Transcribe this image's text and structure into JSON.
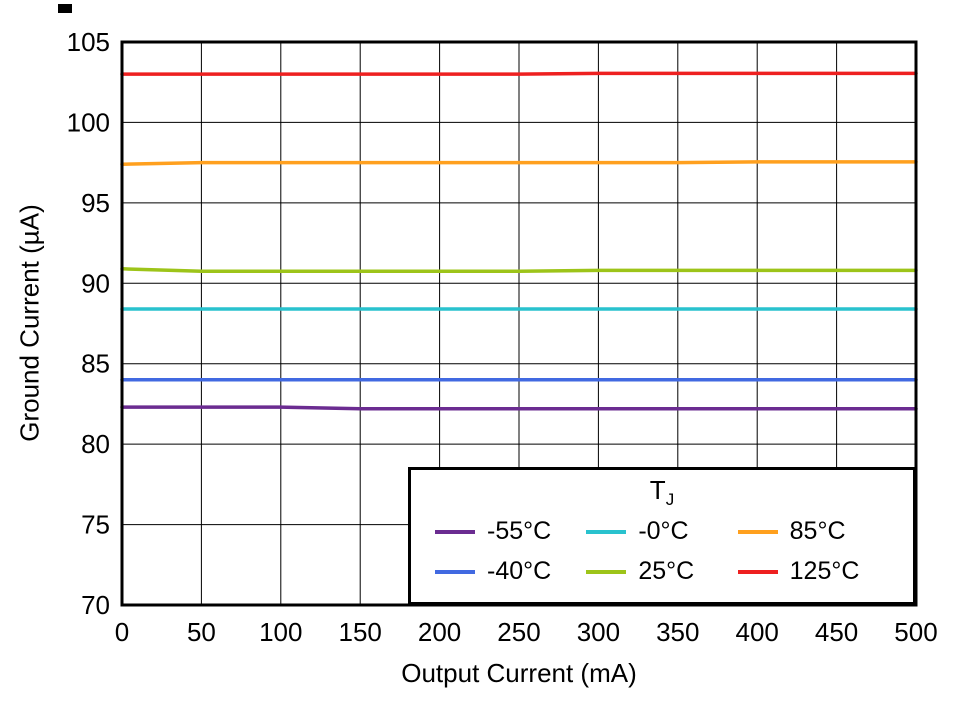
{
  "legend": {
    "title_main": "T",
    "title_sub": "J"
  },
  "chart_data": {
    "type": "line",
    "title": "",
    "xlabel": "Output Current (mA)",
    "ylabel": "Ground Current (µA)",
    "xlim": [
      0,
      500
    ],
    "ylim": [
      70,
      105
    ],
    "xticks": [
      0,
      50,
      100,
      150,
      200,
      250,
      300,
      350,
      400,
      450,
      500
    ],
    "yticks": [
      70,
      75,
      80,
      85,
      90,
      95,
      100,
      105
    ],
    "grid": true,
    "grid_color": "#000000",
    "border_color": "#000000",
    "legend_position": "inside-bottom-right",
    "x": [
      0,
      50,
      100,
      150,
      200,
      250,
      300,
      350,
      400,
      450,
      500
    ],
    "series": [
      {
        "name": "-55°C",
        "color": "#6b2c91",
        "values": [
          82.3,
          82.3,
          82.3,
          82.2,
          82.2,
          82.2,
          82.2,
          82.2,
          82.2,
          82.2,
          82.2
        ]
      },
      {
        "name": "-40°C",
        "color": "#4169e1",
        "values": [
          84.0,
          84.0,
          84.0,
          84.0,
          84.0,
          84.0,
          84.0,
          84.0,
          84.0,
          84.0,
          84.0
        ]
      },
      {
        "name": "-0°C",
        "color": "#29c2ce",
        "values": [
          88.4,
          88.4,
          88.4,
          88.4,
          88.4,
          88.4,
          88.4,
          88.4,
          88.4,
          88.4,
          88.4
        ]
      },
      {
        "name": "25°C",
        "color": "#9dc419",
        "values": [
          90.9,
          90.75,
          90.75,
          90.75,
          90.75,
          90.75,
          90.8,
          90.8,
          90.8,
          90.8,
          90.8
        ]
      },
      {
        "name": "85°C",
        "color": "#ffa01e",
        "values": [
          97.4,
          97.5,
          97.5,
          97.5,
          97.5,
          97.5,
          97.5,
          97.5,
          97.55,
          97.55,
          97.55
        ]
      },
      {
        "name": "125°C",
        "color": "#ee2020",
        "values": [
          103.0,
          103.0,
          103.0,
          103.0,
          103.0,
          103.0,
          103.05,
          103.05,
          103.05,
          103.05,
          103.05
        ]
      }
    ],
    "legend_order": [
      0,
      2,
      4,
      1,
      3,
      5
    ]
  }
}
